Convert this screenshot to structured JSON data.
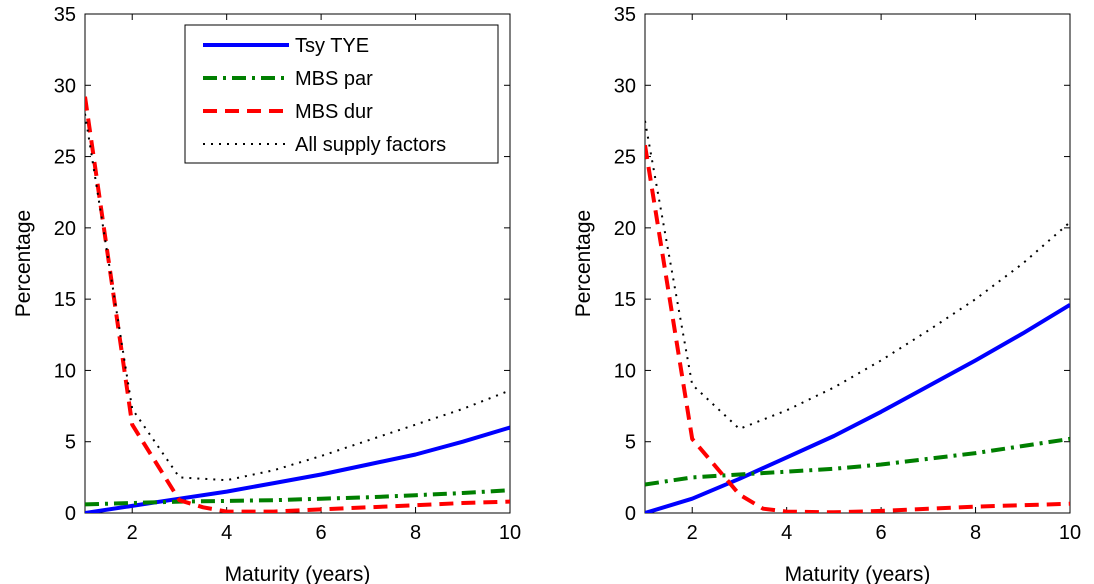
{
  "chart_data": [
    {
      "type": "line",
      "xlabel": "Maturity (years)",
      "ylabel": "Percentage",
      "xlim": [
        1,
        10
      ],
      "ylim": [
        0,
        35
      ],
      "xticks": [
        "2",
        "4",
        "6",
        "8",
        "10"
      ],
      "yticks": [
        "0",
        "5",
        "10",
        "15",
        "20",
        "25",
        "30",
        "35"
      ],
      "grid": false,
      "legend": {
        "position": "top-right",
        "entries": [
          "Tsy TYE",
          "MBS par",
          "MBS dur",
          "All supply factors"
        ]
      },
      "series": [
        {
          "name": "Tsy TYE",
          "color": "#0000ff",
          "style": "solid",
          "x": [
            1,
            2,
            3,
            4,
            5,
            6,
            7,
            8,
            9,
            10
          ],
          "y": [
            0.0,
            0.5,
            1.0,
            1.5,
            2.1,
            2.7,
            3.4,
            4.1,
            5.0,
            6.0
          ]
        },
        {
          "name": "MBS par",
          "color": "#007f00",
          "style": "dashdot",
          "x": [
            1,
            2,
            3,
            4,
            5,
            6,
            7,
            8,
            9,
            10
          ],
          "y": [
            0.6,
            0.7,
            0.8,
            0.85,
            0.9,
            1.0,
            1.1,
            1.25,
            1.4,
            1.6
          ]
        },
        {
          "name": "MBS dur",
          "color": "#ff0000",
          "style": "dashed",
          "x": [
            1,
            2,
            3,
            3.5,
            4,
            5,
            6,
            7,
            8,
            9,
            10
          ],
          "y": [
            29.2,
            6.2,
            0.9,
            0.4,
            0.1,
            0.1,
            0.25,
            0.4,
            0.55,
            0.7,
            0.8
          ]
        },
        {
          "name": "All supply factors",
          "color": "#000000",
          "style": "dotted",
          "x": [
            1,
            2,
            3,
            4,
            5,
            6,
            7,
            8,
            9,
            10
          ],
          "y": [
            28.0,
            7.3,
            2.5,
            2.3,
            3.0,
            4.0,
            5.1,
            6.2,
            7.3,
            8.6
          ]
        }
      ]
    },
    {
      "type": "line",
      "xlabel": "Maturity (years)",
      "ylabel": "Percentage",
      "xlim": [
        1,
        10
      ],
      "ylim": [
        0,
        35
      ],
      "xticks": [
        "2",
        "4",
        "6",
        "8",
        "10"
      ],
      "yticks": [
        "0",
        "5",
        "10",
        "15",
        "20",
        "25",
        "30",
        "35"
      ],
      "grid": false,
      "series": [
        {
          "color": "#0000ff",
          "style": "solid",
          "x": [
            1,
            2,
            3,
            4,
            5,
            6,
            7,
            8,
            9,
            10
          ],
          "y": [
            0.0,
            1.0,
            2.4,
            3.9,
            5.4,
            7.1,
            8.9,
            10.7,
            12.6,
            14.6
          ]
        },
        {
          "color": "#007f00",
          "style": "dashdot",
          "x": [
            1,
            2,
            3,
            4,
            5,
            6,
            7,
            8,
            9,
            10
          ],
          "y": [
            2.0,
            2.5,
            2.7,
            2.9,
            3.1,
            3.4,
            3.8,
            4.2,
            4.7,
            5.2
          ]
        },
        {
          "color": "#ff0000",
          "style": "dashed",
          "x": [
            1,
            2,
            3,
            3.5,
            4,
            5,
            6,
            7,
            8,
            9,
            10
          ],
          "y": [
            25.8,
            5.2,
            1.3,
            0.3,
            0.1,
            0.05,
            0.15,
            0.3,
            0.45,
            0.55,
            0.65
          ]
        },
        {
          "color": "#000000",
          "style": "dotted",
          "x": [
            1,
            2,
            3,
            4,
            5,
            6,
            7,
            8,
            9,
            10
          ],
          "y": [
            27.5,
            9.0,
            5.9,
            7.2,
            8.8,
            10.7,
            12.8,
            15.0,
            17.5,
            20.4
          ]
        }
      ]
    }
  ]
}
